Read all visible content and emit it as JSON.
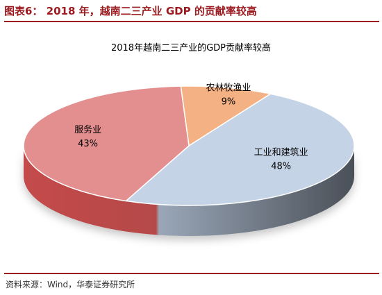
{
  "figure": {
    "title": "图表6： 2018 年，越南二三产业 GDP 的贡献率较高",
    "source": "资料来源：Wind，华泰证券研究所"
  },
  "chart_data": {
    "type": "pie",
    "title": "2018年越南二三产业的GDP贡献率较高",
    "slices": [
      {
        "label": "农林牧渔业",
        "value": 9,
        "value_label": "9%",
        "color": "#f4b183"
      },
      {
        "label": "工业和建筑业",
        "value": 48,
        "value_label": "48%",
        "color": "#c5d3e6"
      },
      {
        "label": "服务业",
        "value": 43,
        "value_label": "43%",
        "color": "#e48f8f"
      }
    ],
    "style": "3d",
    "legend": "none"
  }
}
